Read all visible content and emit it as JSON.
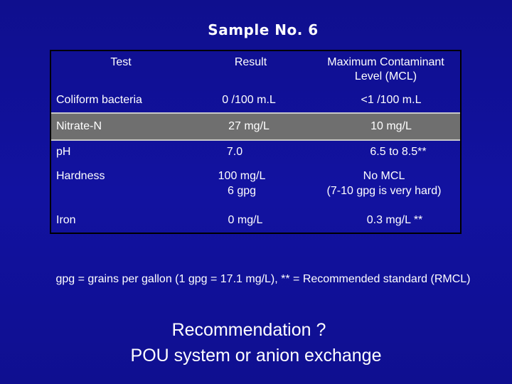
{
  "title": "Sample No. 6",
  "table": {
    "headers": {
      "test": "Test",
      "result": "Result",
      "mcl_line1": "Maximum Contaminant",
      "mcl_line2": "Level  (MCL)"
    },
    "rows": [
      {
        "test": "Coliform bacteria",
        "result": "0  /100 m.L",
        "mcl": "<1  /100 m.L"
      },
      {
        "test": "Nitrate-N",
        "result": "27 mg/L",
        "mcl": "10 mg/L"
      },
      {
        "test": "pH",
        "result": "7.0",
        "mcl": "6.5 to 8.5**"
      },
      {
        "test": "Hardness",
        "result_line1": "100 mg/L",
        "result_line2": "6 gpg",
        "mcl_line1": "No MCL",
        "mcl_line2": "(7-10 gpg is very hard)"
      },
      {
        "test": "Iron",
        "result": "0 mg/L",
        "mcl": "0.3 mg/L **"
      }
    ]
  },
  "footnote": "gpg = grains per gallon (1 gpg = 17.1 mg/L), ** = Recommended standard (RMCL)",
  "recommendation": {
    "line1": "Recommendation ?",
    "line2": "POU system or anion exchange"
  },
  "colors": {
    "background": "#11119a",
    "highlight_row": "#6f6f6f",
    "text": "#ffffff"
  }
}
